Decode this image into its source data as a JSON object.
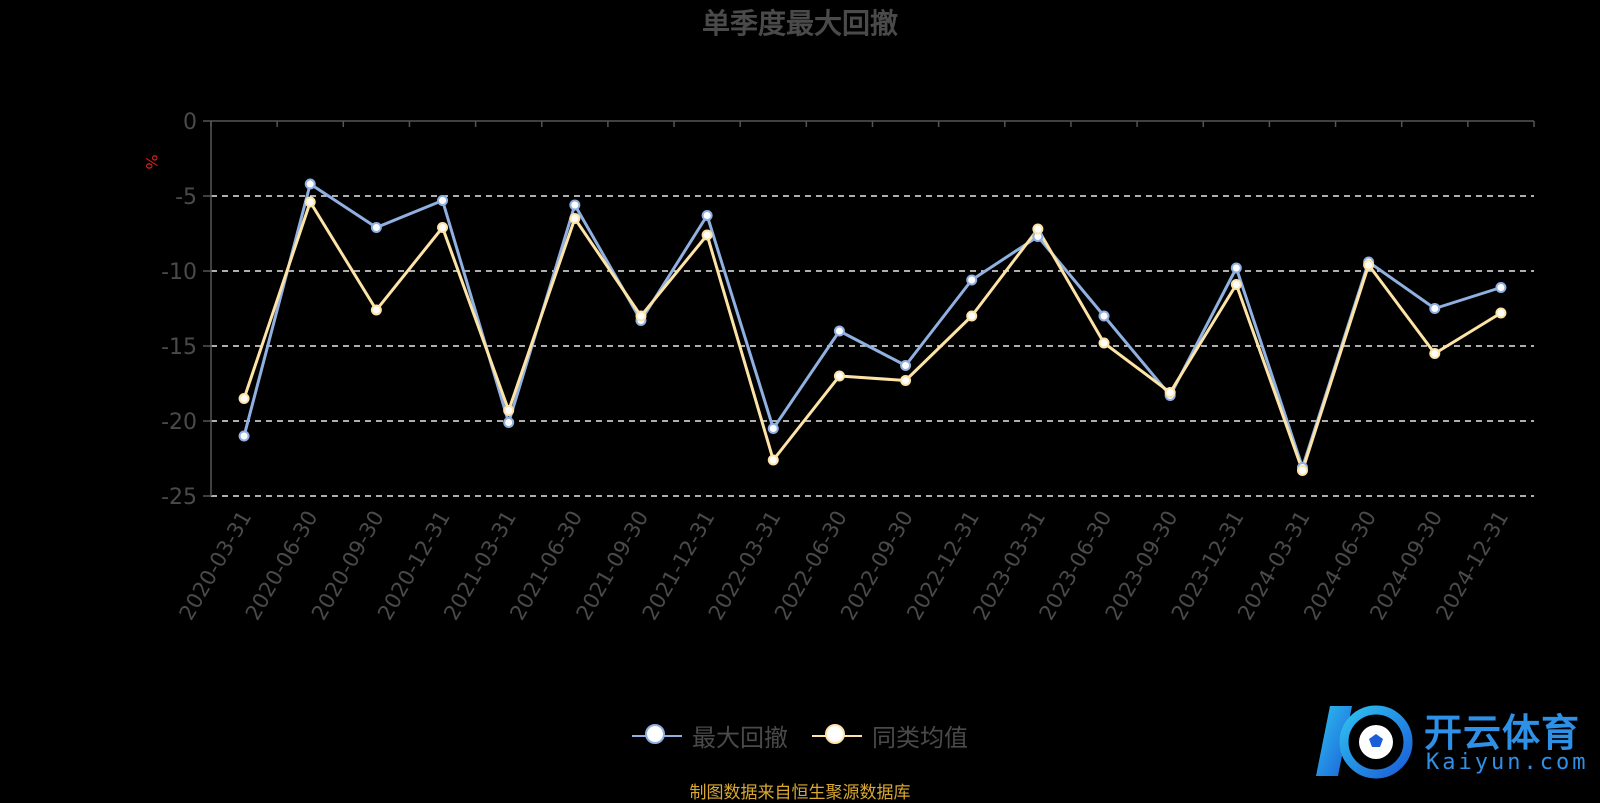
{
  "chart_data": {
    "type": "line",
    "title": "单季度最大回撤",
    "ylabel": "%",
    "xlabel": "",
    "categories": [
      "2020-03-31",
      "2020-06-30",
      "2020-09-30",
      "2020-12-31",
      "2021-03-31",
      "2021-06-30",
      "2021-09-30",
      "2021-12-31",
      "2022-03-31",
      "2022-06-30",
      "2022-09-30",
      "2022-12-31",
      "2023-03-31",
      "2023-06-30",
      "2023-09-30",
      "2023-12-31",
      "2024-03-31",
      "2024-06-30",
      "2024-09-30",
      "2024-12-31"
    ],
    "ylim": [
      -25,
      0
    ],
    "yticks": [
      "0",
      "-5",
      "-10",
      "-15",
      "-20",
      "-25"
    ],
    "grid": true,
    "legend_position": "bottom",
    "series": [
      {
        "name": "最大回撤",
        "color": "#8fb0e0",
        "values": [
          -21.0,
          -4.2,
          -7.1,
          -5.3,
          -20.1,
          -5.6,
          -13.3,
          -6.3,
          -20.5,
          -14.0,
          -16.3,
          -10.6,
          -7.7,
          -13.0,
          -18.3,
          -9.8,
          -23.1,
          -9.4,
          -12.5,
          -11.1
        ]
      },
      {
        "name": "同类均值",
        "color": "#fde3a6",
        "values": [
          -18.5,
          -5.4,
          -12.6,
          -7.1,
          -19.3,
          -6.5,
          -13.0,
          -7.6,
          -22.6,
          -17.0,
          -17.3,
          -13.0,
          -7.2,
          -14.8,
          -18.1,
          -10.9,
          -23.3,
          -9.6,
          -15.5,
          -12.8
        ]
      }
    ]
  },
  "source_note": "制图数据来自恒生聚源数据库",
  "watermark": {
    "text": "开云体育",
    "sub": "Kaiyun.com"
  }
}
